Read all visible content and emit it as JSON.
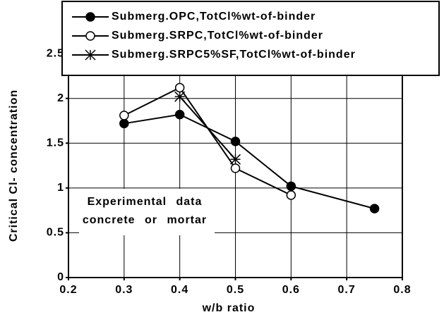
{
  "chart_data": {
    "type": "line",
    "xlabel": "w/b ratio",
    "ylabel": "Critical Cl- concentration",
    "annotations": [
      "Experimental data",
      "concrete or mortar"
    ],
    "xlim": [
      0.2,
      0.8
    ],
    "xticks": [
      0.2,
      0.3,
      0.4,
      0.5,
      0.6,
      0.7,
      0.8
    ],
    "ylim": [
      0,
      2.8
    ],
    "yticks": [
      0,
      0.5,
      1,
      1.5,
      2,
      2.5
    ],
    "grid": true,
    "legend": "top",
    "series": [
      {
        "name": "Submerg.OPC,TotCl%wt-of-binder",
        "color": "#000000",
        "marker": "filled-circle",
        "x": [
          0.3,
          0.4,
          0.5,
          0.6,
          0.75
        ],
        "values": [
          1.72,
          1.82,
          1.52,
          1.02,
          0.77
        ]
      },
      {
        "name": "Submerg.SRPC,TotCl%wt-of-binder",
        "color": "#000000",
        "marker": "open-circle",
        "x": [
          0.3,
          0.4,
          0.5,
          0.6
        ],
        "values": [
          1.81,
          2.12,
          1.22,
          0.92
        ]
      },
      {
        "name": "Submerg.SRPC5%SF,TotCl%wt-of-binder",
        "color": "#000000",
        "marker": "asterisk",
        "x": [
          0.4,
          0.5
        ],
        "values": [
          2.02,
          1.32
        ]
      }
    ]
  }
}
